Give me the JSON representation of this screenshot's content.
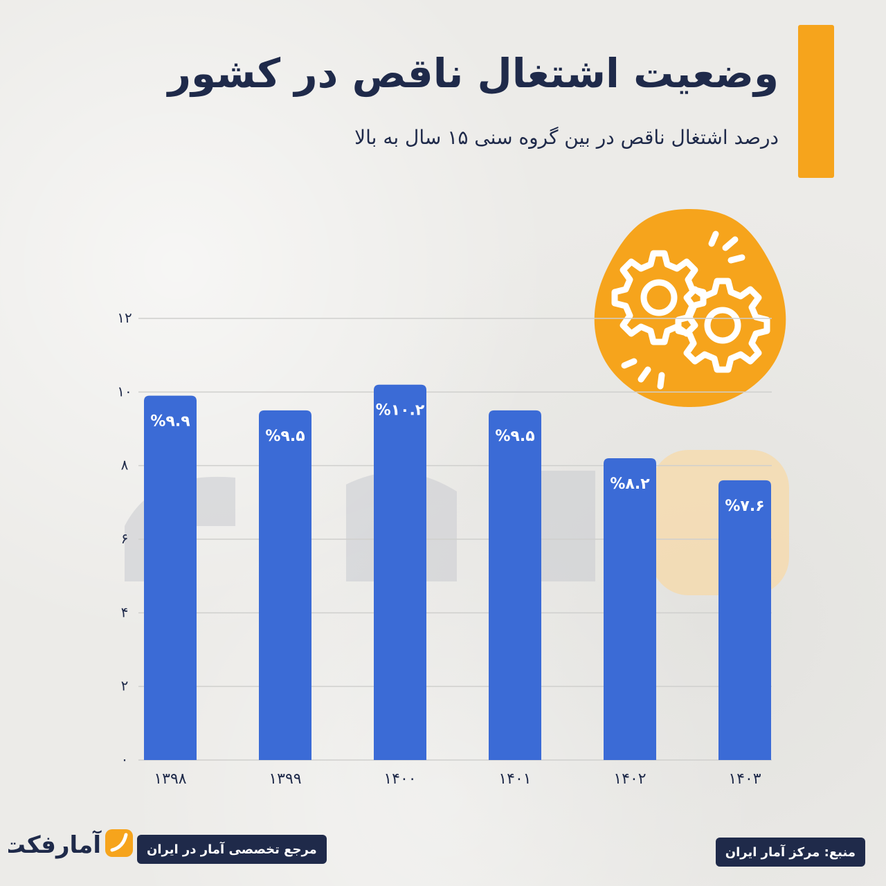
{
  "header": {
    "title": "وضعیت اشتغال ناقص در کشور",
    "subtitle": "درصد اشتغال ناقص در بین گروه سنی ۱۵ سال به بالا"
  },
  "footer": {
    "brand_name": "آمارفکت",
    "tagline": "مرجع تخصصی آمار در ایران",
    "source": "منبع: مرکز آمار ایران"
  },
  "colors": {
    "accent": "#f6a41c",
    "bar": "#3b6bd6",
    "navy": "#1f2a4a",
    "watermark_gray": "#c9cbcf",
    "watermark_orange": "#f7d9a8"
  },
  "icons": {
    "badge": "gears-icon",
    "brand": "amarfact-logo-icon"
  },
  "chart_data": {
    "type": "bar",
    "categories": [
      "۱۳۹۸",
      "۱۳۹۹",
      "۱۴۰۰",
      "۱۴۰۱",
      "۱۴۰۲",
      "۱۴۰۳"
    ],
    "values": [
      9.9,
      9.5,
      10.2,
      9.5,
      8.2,
      7.6
    ],
    "value_labels": [
      "%۹.۹",
      "%۹.۵",
      "%۱۰.۲",
      "%۹.۵",
      "%۸.۲",
      "%۷.۶"
    ],
    "yticks": [
      0,
      2,
      4,
      6,
      8,
      10,
      12
    ],
    "ytick_labels": [
      "۰",
      "۲",
      "۴",
      "۶",
      "۸",
      "۱۰",
      "۱۲"
    ],
    "ylim": [
      0,
      12
    ],
    "grid": true,
    "legend": "none"
  }
}
